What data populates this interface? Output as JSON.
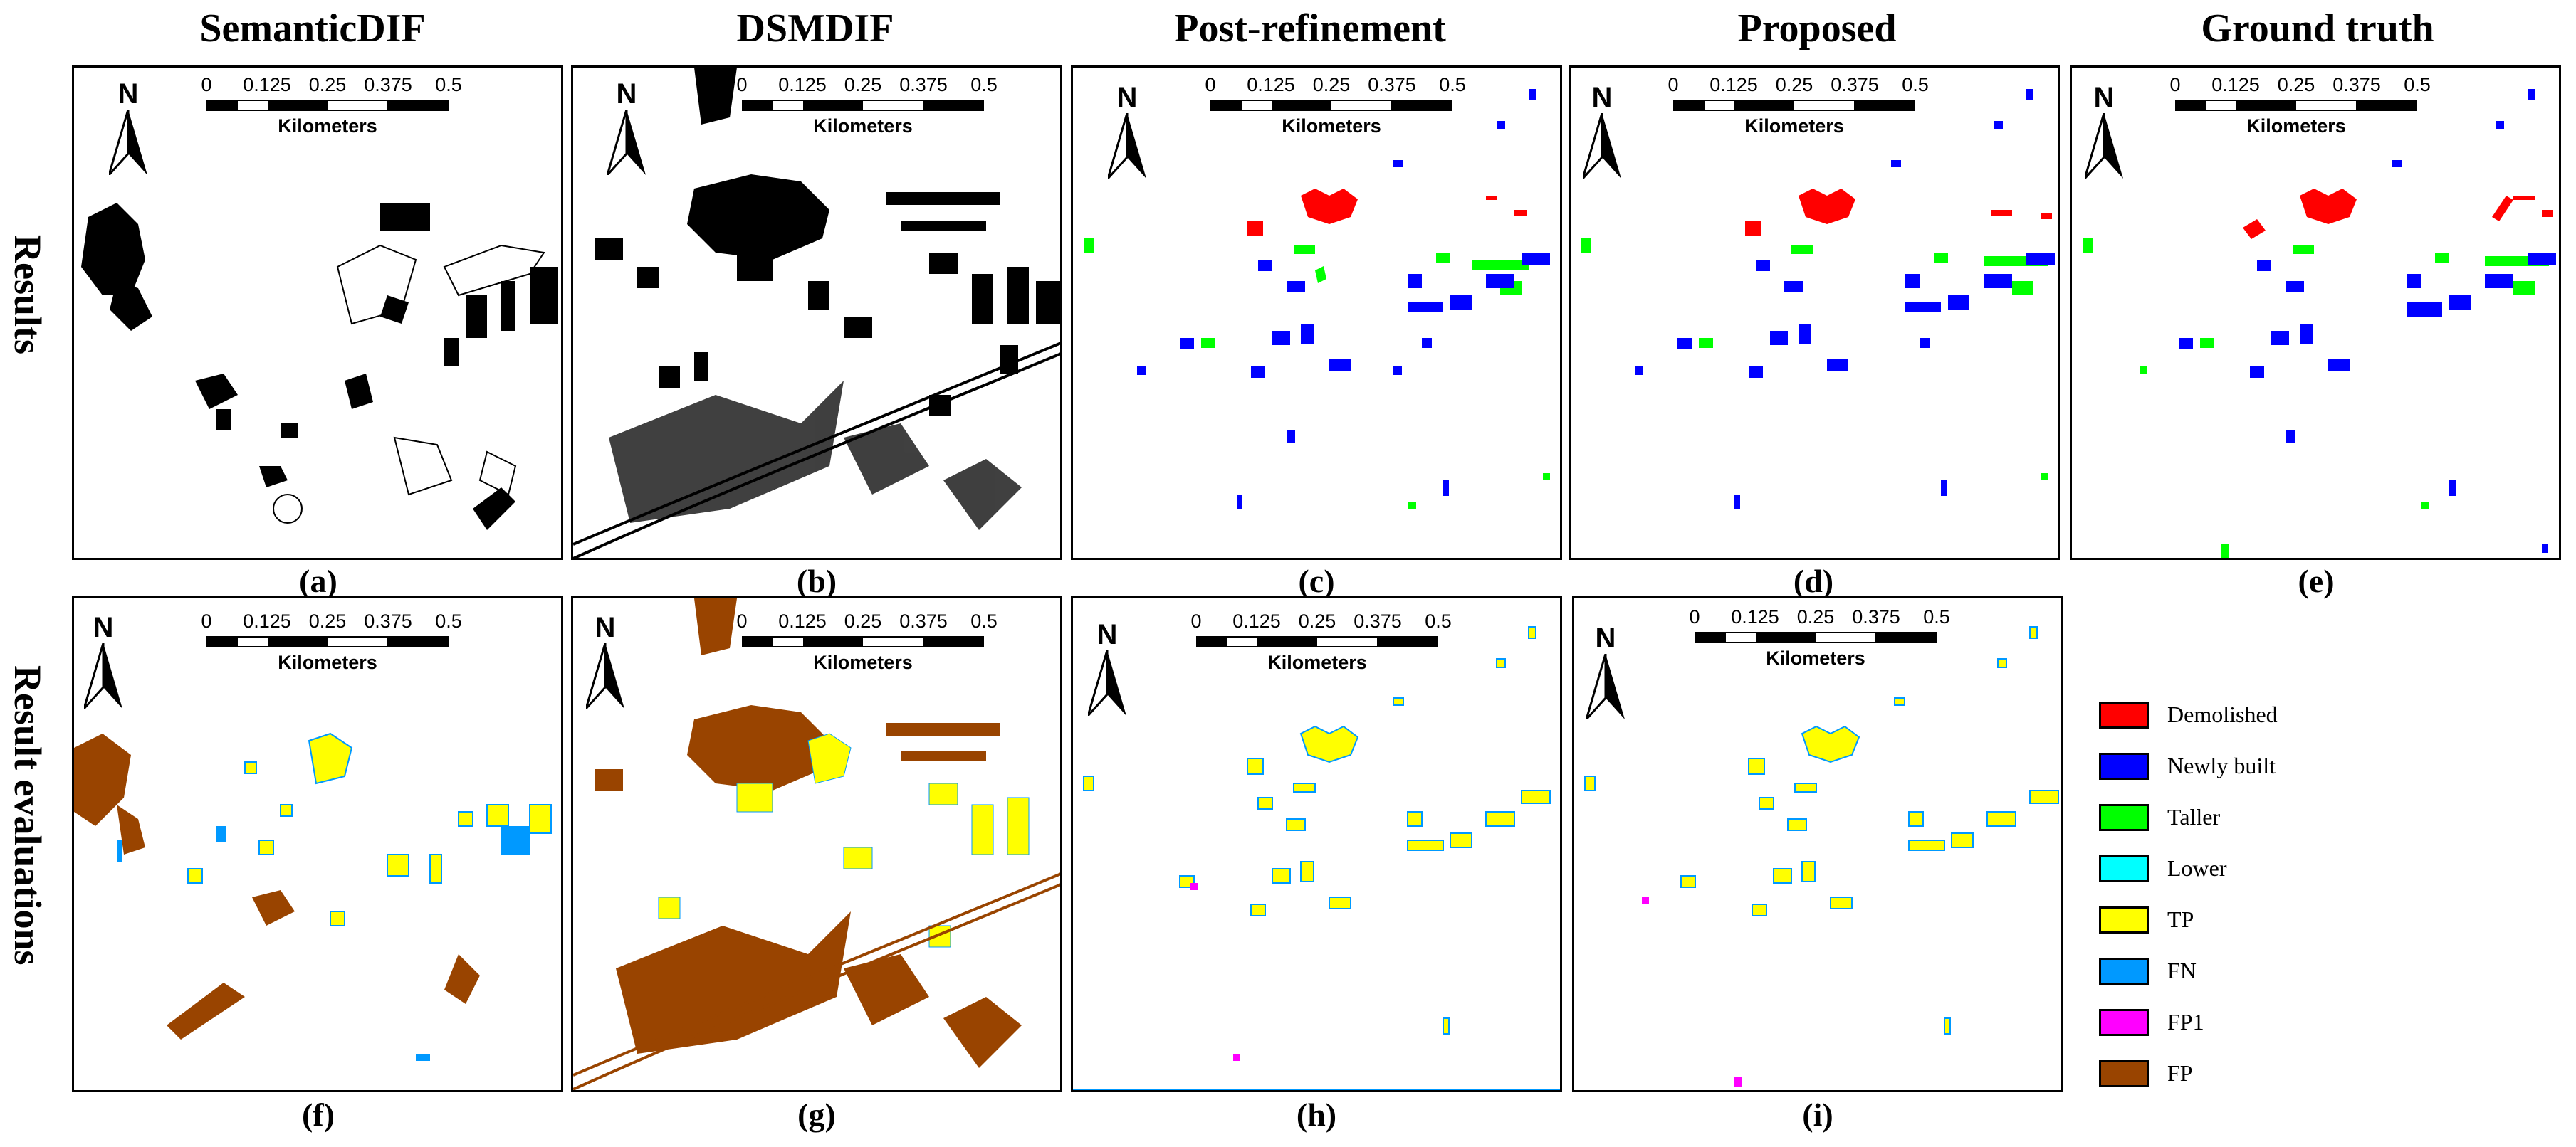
{
  "column_titles": [
    "SemanticDIF",
    "DSMDIF",
    "Post-refinement",
    "Proposed",
    "Ground truth"
  ],
  "row_titles": [
    "Results",
    "Result evaluations"
  ],
  "panel_labels": [
    "(a)",
    "(b)",
    "(c)",
    "(d)",
    "(e)",
    "(f)",
    "(g)",
    "(h)",
    "(i)"
  ],
  "north_letter": "N",
  "scale_bar": {
    "ticks": [
      "0",
      "0.125",
      "0.25",
      "0.375",
      "0.5"
    ],
    "unit": "Kilometers"
  },
  "legend": [
    {
      "label": "Demolished",
      "color": "#ff0000"
    },
    {
      "label": "Newly built",
      "color": "#0000ff"
    },
    {
      "label": "Taller",
      "color": "#00ff00"
    },
    {
      "label": "Lower",
      "color": "#00ffff"
    },
    {
      "label": "TP",
      "color": "#ffff00"
    },
    {
      "label": "FN",
      "color": "#0099ff"
    },
    {
      "label": "FP1",
      "color": "#ff00ff"
    },
    {
      "label": "FP",
      "color": "#994400"
    }
  ]
}
